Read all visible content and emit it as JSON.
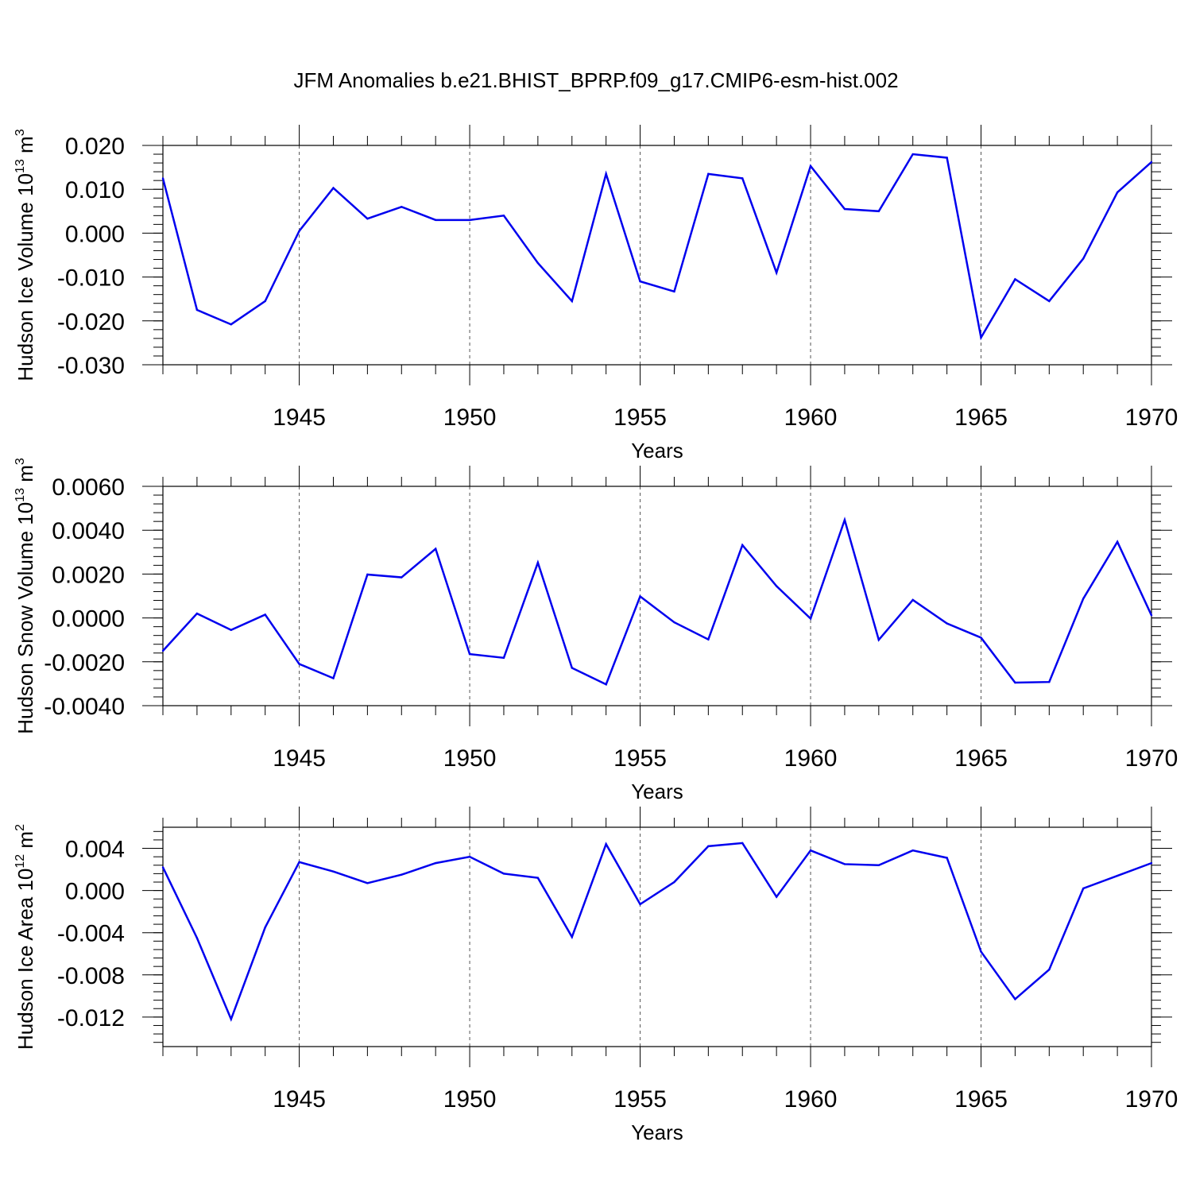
{
  "title": "JFM Anomalies b.e21.BHIST_BPRP.f09_g17.CMIP6-esm-hist.002",
  "colors": {
    "line": "#0000ee",
    "axis": "#000000",
    "grid": "#555555"
  },
  "chart_data": [
    {
      "type": "line",
      "ylabel": {
        "text": "Hudson Ice Volume 10",
        "exp": "13",
        "unit": " m",
        "unit_exp": "3"
      },
      "xlabel": "Years",
      "xlim": [
        1941,
        1970
      ],
      "ylim": [
        -0.03,
        0.02
      ],
      "yticks": [
        {
          "v": 0.02,
          "label": "0.020"
        },
        {
          "v": 0.01,
          "label": "0.010"
        },
        {
          "v": 0.0,
          "label": "0.000"
        },
        {
          "v": -0.01,
          "label": "-0.010"
        },
        {
          "v": -0.02,
          "label": "-0.020"
        },
        {
          "v": -0.03,
          "label": "-0.030"
        }
      ],
      "yminor_step": 0.002,
      "xticks": [
        1945,
        1950,
        1955,
        1960,
        1965,
        1970
      ],
      "grid_x": true,
      "series": [
        {
          "name": "Hudson Ice Volume",
          "x": [
            1941,
            1942,
            1943,
            1944,
            1945,
            1946,
            1947,
            1948,
            1949,
            1950,
            1951,
            1952,
            1953,
            1954,
            1955,
            1956,
            1957,
            1958,
            1959,
            1960,
            1961,
            1962,
            1963,
            1964,
            1965,
            1966,
            1967,
            1968,
            1969,
            1970
          ],
          "values": [
            0.0125,
            -0.0175,
            -0.0208,
            -0.0155,
            0.0005,
            0.0103,
            0.0033,
            0.006,
            0.003,
            0.003,
            0.004,
            -0.0068,
            -0.0155,
            0.0135,
            -0.011,
            -0.0133,
            0.0135,
            0.0125,
            -0.009,
            0.0153,
            0.0055,
            0.005,
            0.018,
            0.0172,
            -0.0238,
            -0.0105,
            -0.0155,
            -0.0058,
            0.0093,
            0.0162
          ]
        }
      ]
    },
    {
      "type": "line",
      "ylabel": {
        "text": "Hudson Snow Volume 10",
        "exp": "13",
        "unit": " m",
        "unit_exp": "3"
      },
      "xlabel": "Years",
      "xlim": [
        1941,
        1970
      ],
      "ylim": [
        -0.004,
        0.006
      ],
      "yticks": [
        {
          "v": 0.006,
          "label": "0.0060"
        },
        {
          "v": 0.004,
          "label": "0.0040"
        },
        {
          "v": 0.002,
          "label": "0.0020"
        },
        {
          "v": 0.0,
          "label": "0.0000"
        },
        {
          "v": -0.002,
          "label": "-0.0020"
        },
        {
          "v": -0.004,
          "label": "-0.0040"
        }
      ],
      "yminor_step": 0.0004,
      "xticks": [
        1945,
        1950,
        1955,
        1960,
        1965,
        1970
      ],
      "grid_x": true,
      "series": [
        {
          "name": "Hudson Snow Volume",
          "x": [
            1941,
            1942,
            1943,
            1944,
            1945,
            1946,
            1947,
            1948,
            1949,
            1950,
            1951,
            1952,
            1953,
            1954,
            1955,
            1956,
            1957,
            1958,
            1959,
            1960,
            1961,
            1962,
            1963,
            1964,
            1965,
            1966,
            1967,
            1968,
            1969,
            1970
          ],
          "values": [
            -0.0015,
            0.0002,
            -0.00055,
            0.00015,
            -0.0021,
            -0.00275,
            0.00198,
            0.00185,
            0.00315,
            -0.00165,
            -0.00182,
            0.00252,
            -0.00228,
            -0.00303,
            0.00098,
            -0.0002,
            -0.00098,
            0.00332,
            0.00145,
            -3e-05,
            0.00447,
            -0.001,
            0.00082,
            -0.00025,
            -0.0009,
            -0.00295,
            -0.00292,
            0.00088,
            0.00347,
            0.00012
          ]
        }
      ]
    },
    {
      "type": "line",
      "ylabel": {
        "text": "Hudson Ice Area 10",
        "exp": "12",
        "unit": " m",
        "unit_exp": "2"
      },
      "xlabel": "Years",
      "xlim": [
        1941,
        1970
      ],
      "ylim": [
        -0.0148,
        0.006
      ],
      "yticks": [
        {
          "v": 0.004,
          "label": "0.004"
        },
        {
          "v": 0.0,
          "label": "0.000"
        },
        {
          "v": -0.004,
          "label": "-0.004"
        },
        {
          "v": -0.008,
          "label": "-0.008"
        },
        {
          "v": -0.012,
          "label": "-0.012"
        }
      ],
      "yminor_step": 0.0008,
      "xticks": [
        1945,
        1950,
        1955,
        1960,
        1965,
        1970
      ],
      "grid_x": true,
      "series": [
        {
          "name": "Hudson Ice Area",
          "x": [
            1941,
            1942,
            1943,
            1944,
            1945,
            1946,
            1947,
            1948,
            1949,
            1950,
            1951,
            1952,
            1953,
            1954,
            1955,
            1956,
            1957,
            1958,
            1959,
            1960,
            1961,
            1962,
            1963,
            1964,
            1965,
            1966,
            1967,
            1968,
            1969,
            1970
          ],
          "values": [
            0.0022,
            -0.0045,
            -0.0122,
            -0.0035,
            0.0027,
            0.0018,
            0.0007,
            0.0015,
            0.0026,
            0.0032,
            0.0016,
            0.0012,
            -0.0044,
            0.0044,
            -0.0013,
            0.0008,
            0.0042,
            0.0045,
            -0.0006,
            0.0038,
            0.0025,
            0.0024,
            0.0038,
            0.0031,
            -0.0058,
            -0.0103,
            -0.0075,
            0.0002,
            0.0014,
            0.0026
          ]
        }
      ]
    }
  ]
}
